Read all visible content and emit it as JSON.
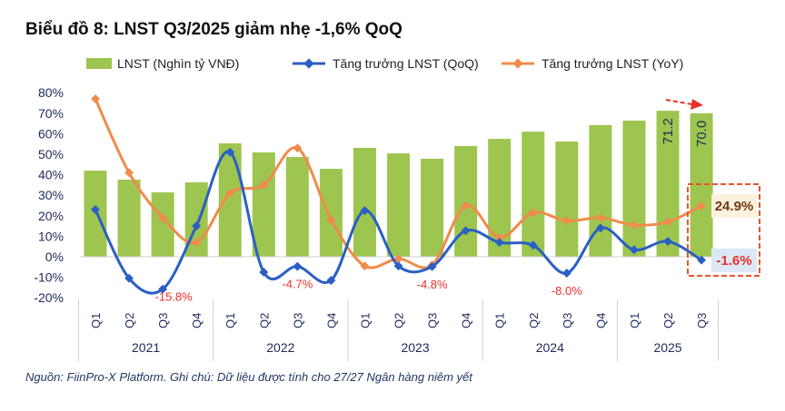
{
  "title": "Biểu đồ 8: LNST Q3/2025 giảm nhẹ -1,6% QoQ",
  "footer": "Nguồn: FiinPro-X Platform. Ghi chú: Dữ liệu được tính cho 27/27 Ngân hàng niêm yết",
  "colors": {
    "bar": "#9dc54f",
    "qoq": "#2a5fc4",
    "yoy": "#f08b4c",
    "highlight": "#e8542a",
    "label_red": "#e8302a"
  },
  "chart_data": {
    "type": "bar+line",
    "categories": [
      "Q1",
      "Q2",
      "Q3",
      "Q4",
      "Q1",
      "Q2",
      "Q3",
      "Q4",
      "Q1",
      "Q2",
      "Q3",
      "Q4",
      "Q1",
      "Q2",
      "Q3",
      "Q4",
      "Q1",
      "Q2",
      "Q3"
    ],
    "years": [
      "2021",
      "2022",
      "2023",
      "2024",
      "2025"
    ],
    "ylim": [
      -20,
      80
    ],
    "yticks": [
      "-20%",
      "-10%",
      "0%",
      "10%",
      "20%",
      "30%",
      "40%",
      "50%",
      "60%",
      "70%",
      "80%"
    ],
    "legend_placement": "top",
    "series": [
      {
        "name": "LNST (Nghìn tỷ VNĐ)",
        "type": "bar",
        "values": [
          42,
          37.6,
          31.4,
          36.3,
          55.3,
          50.9,
          48.7,
          42.9,
          53.1,
          50.4,
          47.8,
          54,
          57.5,
          61,
          56.2,
          64.2,
          66.4,
          71.2,
          70.0
        ]
      },
      {
        "name": "Tăng trưởng LNST (QoQ)",
        "type": "line",
        "values": [
          23,
          -10.5,
          -15.8,
          15,
          51,
          -7.5,
          -4.7,
          -11.5,
          22.5,
          -4.5,
          -4.8,
          12.7,
          7,
          5.6,
          -8.0,
          14,
          3.4,
          7.5,
          -1.6
        ]
      },
      {
        "name": "Tăng trưởng LNST (YoY)",
        "type": "line",
        "values": [
          77,
          41,
          19,
          7,
          31,
          35,
          53,
          18,
          -4.5,
          -1,
          -4,
          25,
          9.3,
          21.5,
          17.5,
          19,
          15.5,
          17,
          24.9
        ]
      }
    ],
    "bar_labels": [
      {
        "index": 17,
        "text": "71.2"
      },
      {
        "index": 18,
        "text": "70.0"
      }
    ],
    "qoq_labels": [
      {
        "index": 2,
        "text": "-15.8%"
      },
      {
        "index": 6,
        "text": "-4.7%"
      },
      {
        "index": 10,
        "text": "-4.8%"
      },
      {
        "index": 14,
        "text": "-8.0%"
      }
    ],
    "callouts": {
      "yoy_last": "24.9%",
      "qoq_last": "-1.6%"
    }
  }
}
